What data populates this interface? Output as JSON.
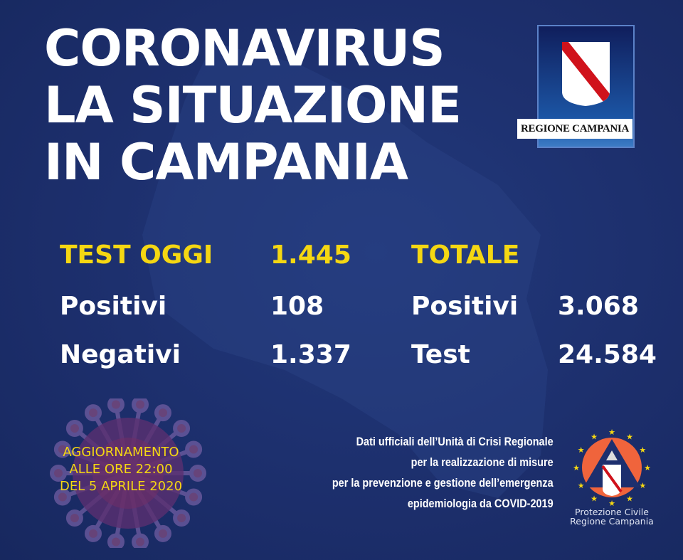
{
  "header": {
    "title_lines": [
      "CORONAVIRUS",
      "LA SITUAZIONE",
      "IN CAMPANIA"
    ]
  },
  "logo": {
    "text": "REGIONE CAMPANIA"
  },
  "today": {
    "label": "TEST OGGI",
    "value": "1.445",
    "rows": [
      {
        "label": "Positivi",
        "value": "108"
      },
      {
        "label": "Negativi",
        "value": "1.337"
      }
    ]
  },
  "total": {
    "label": "TOTALE",
    "rows": [
      {
        "label": "Positivi",
        "value": "3.068"
      },
      {
        "label": "Test",
        "value": "24.584"
      }
    ]
  },
  "update": {
    "lines": [
      "AGGIORNAMENTO",
      "ALLE ORE 22:00",
      "DEL 5 APRILE 2020"
    ]
  },
  "credits": {
    "lines": [
      "Dati ufficiali dell’Unità di Crisi Regionale",
      "per la realizzazione di misure",
      "per la prevenzione e gestione dell’emergenza",
      "epidemiologia da COVID-2019"
    ]
  },
  "protezione": {
    "lines": [
      "Protezione Civile",
      "Regione Campania"
    ]
  },
  "colors": {
    "background": "#1d2f6e",
    "accent": "#f5d712",
    "logo_red": "#d0121b",
    "pc_orange": "#f0643c"
  }
}
